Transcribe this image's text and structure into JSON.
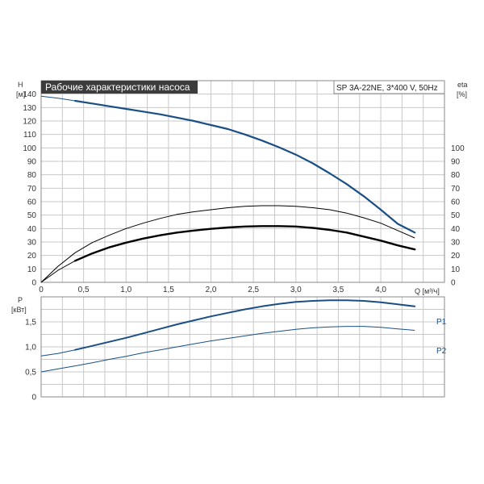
{
  "title": "Рабочие характеристики насоса",
  "model": "SP 3A-22NE, 3*400 V, 50Hz",
  "colors": {
    "blue": "#1a4f85",
    "black": "#000000",
    "grid": "#c8c8c8",
    "title_bg": "#3c3c3c",
    "frame": "#888888"
  },
  "chart_data": [
    {
      "type": "line",
      "x_label": "Q [м³/ч]",
      "y_label": [
        "H",
        "[м]"
      ],
      "y2_label": [
        "eta",
        "[%]"
      ],
      "xlim": [
        0,
        4.75
      ],
      "ylim": [
        0,
        150
      ],
      "y2lim": [
        0,
        150
      ],
      "x_ticks": [
        "0",
        "0,5",
        "1,0",
        "1,5",
        "2,0",
        "2,5",
        "3,0",
        "3,5",
        "4,0"
      ],
      "x_tick_values": [
        0,
        0.5,
        1.0,
        1.5,
        2.0,
        2.5,
        3.0,
        3.5,
        4.0
      ],
      "y_ticks": [
        "0",
        "10",
        "20",
        "30",
        "40",
        "50",
        "60",
        "70",
        "80",
        "90",
        "100",
        "110",
        "120",
        "130",
        "140"
      ],
      "y_tick_values": [
        0,
        10,
        20,
        30,
        40,
        50,
        60,
        70,
        80,
        90,
        100,
        110,
        120,
        130,
        140
      ],
      "y2_ticks": [
        "0",
        "10",
        "20",
        "30",
        "40",
        "50",
        "60",
        "70",
        "80",
        "90",
        "100"
      ],
      "y2_tick_values": [
        0,
        10,
        20,
        30,
        40,
        50,
        60,
        70,
        80,
        90,
        100
      ],
      "grid": true,
      "series": [
        {
          "key": "H",
          "axis": "y",
          "color": "#1a4f85",
          "points": [
            [
              0,
              138.5
            ],
            [
              0.2,
              137
            ],
            [
              0.4,
              135
            ],
            [
              0.6,
              133
            ],
            [
              0.8,
              131
            ],
            [
              1.0,
              129
            ],
            [
              1.2,
              127
            ],
            [
              1.4,
              125
            ],
            [
              1.6,
              122.5
            ],
            [
              1.8,
              120
            ],
            [
              2.0,
              117
            ],
            [
              2.2,
              114
            ],
            [
              2.4,
              110
            ],
            [
              2.6,
              105.5
            ],
            [
              2.8,
              100.5
            ],
            [
              3.0,
              95
            ],
            [
              3.2,
              88.5
            ],
            [
              3.4,
              81
            ],
            [
              3.6,
              73
            ],
            [
              3.8,
              64
            ],
            [
              4.0,
              54
            ],
            [
              4.2,
              43.5
            ],
            [
              4.4,
              37
            ]
          ]
        },
        {
          "key": "eta_thin",
          "axis": "y2",
          "color": "#000000",
          "points": [
            [
              0,
              0
            ],
            [
              0.2,
              12
            ],
            [
              0.4,
              22
            ],
            [
              0.6,
              29.5
            ],
            [
              0.8,
              35
            ],
            [
              1.0,
              40
            ],
            [
              1.2,
              44
            ],
            [
              1.4,
              47.5
            ],
            [
              1.6,
              50.5
            ],
            [
              1.8,
              52.5
            ],
            [
              2.0,
              54
            ],
            [
              2.2,
              55.5
            ],
            [
              2.4,
              56.5
            ],
            [
              2.6,
              57
            ],
            [
              2.8,
              57
            ],
            [
              3.0,
              56.5
            ],
            [
              3.2,
              55.5
            ],
            [
              3.4,
              54
            ],
            [
              3.6,
              51.5
            ],
            [
              3.8,
              48
            ],
            [
              4.0,
              44
            ],
            [
              4.2,
              38.5
            ],
            [
              4.4,
              33
            ]
          ]
        },
        {
          "key": "eta_thick",
          "axis": "y2",
          "color": "#000000",
          "points": [
            [
              0,
              0
            ],
            [
              0.2,
              9
            ],
            [
              0.4,
              16
            ],
            [
              0.6,
              21.5
            ],
            [
              0.8,
              26
            ],
            [
              1.0,
              29.5
            ],
            [
              1.2,
              32.5
            ],
            [
              1.4,
              35
            ],
            [
              1.6,
              37
            ],
            [
              1.8,
              38.5
            ],
            [
              2.0,
              39.8
            ],
            [
              2.2,
              40.8
            ],
            [
              2.4,
              41.5
            ],
            [
              2.6,
              41.8
            ],
            [
              2.8,
              41.8
            ],
            [
              3.0,
              41.5
            ],
            [
              3.2,
              40.5
            ],
            [
              3.4,
              39
            ],
            [
              3.6,
              37
            ],
            [
              3.8,
              34
            ],
            [
              4.0,
              31
            ],
            [
              4.2,
              27.5
            ],
            [
              4.4,
              24.5
            ]
          ]
        }
      ]
    },
    {
      "type": "line",
      "x_label": "",
      "y_label": [
        "P",
        "[кВт]"
      ],
      "xlim": [
        0,
        4.75
      ],
      "ylim": [
        0,
        2.0
      ],
      "y_ticks": [
        "0",
        "0,5",
        "1,0",
        "1,5"
      ],
      "y_tick_values": [
        0,
        0.5,
        1.0,
        1.5
      ],
      "grid": true,
      "series": [
        {
          "name": "P1",
          "key": "P1",
          "color": "#1a4f85",
          "points": [
            [
              0,
              0.82
            ],
            [
              0.2,
              0.87
            ],
            [
              0.4,
              0.94
            ],
            [
              0.6,
              1.02
            ],
            [
              0.8,
              1.1
            ],
            [
              1.0,
              1.18
            ],
            [
              1.2,
              1.27
            ],
            [
              1.4,
              1.36
            ],
            [
              1.6,
              1.45
            ],
            [
              1.8,
              1.53
            ],
            [
              2.0,
              1.61
            ],
            [
              2.2,
              1.68
            ],
            [
              2.4,
              1.75
            ],
            [
              2.6,
              1.81
            ],
            [
              2.8,
              1.86
            ],
            [
              3.0,
              1.9
            ],
            [
              3.2,
              1.92
            ],
            [
              3.4,
              1.93
            ],
            [
              3.6,
              1.93
            ],
            [
              3.8,
              1.92
            ],
            [
              4.0,
              1.89
            ],
            [
              4.2,
              1.85
            ],
            [
              4.4,
              1.81
            ]
          ]
        },
        {
          "name": "P2",
          "key": "P2",
          "color": "#1a4f85",
          "points": [
            [
              0,
              0.5
            ],
            [
              0.2,
              0.56
            ],
            [
              0.4,
              0.62
            ],
            [
              0.6,
              0.68
            ],
            [
              0.8,
              0.75
            ],
            [
              1.0,
              0.81
            ],
            [
              1.2,
              0.88
            ],
            [
              1.4,
              0.94
            ],
            [
              1.6,
              1.0
            ],
            [
              1.8,
              1.06
            ],
            [
              2.0,
              1.12
            ],
            [
              2.2,
              1.17
            ],
            [
              2.4,
              1.22
            ],
            [
              2.6,
              1.27
            ],
            [
              2.8,
              1.31
            ],
            [
              3.0,
              1.35
            ],
            [
              3.2,
              1.38
            ],
            [
              3.4,
              1.4
            ],
            [
              3.6,
              1.41
            ],
            [
              3.8,
              1.41
            ],
            [
              4.0,
              1.39
            ],
            [
              4.2,
              1.36
            ],
            [
              4.4,
              1.33
            ]
          ]
        }
      ]
    }
  ]
}
